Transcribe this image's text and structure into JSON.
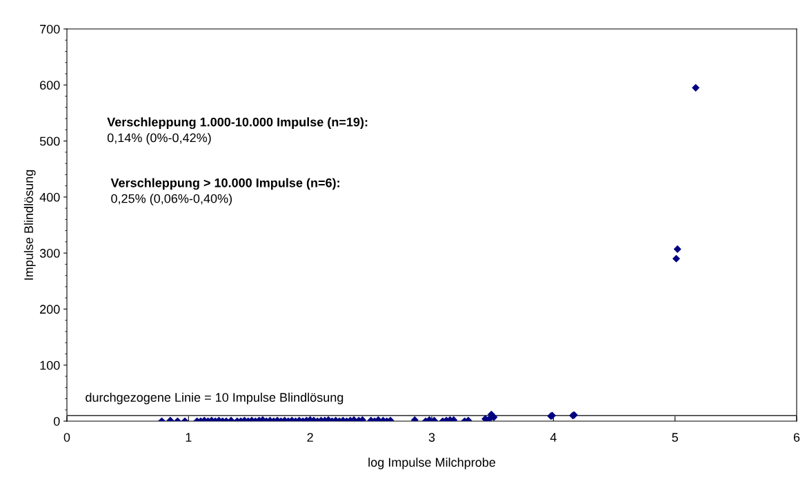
{
  "chart_data": {
    "type": "scatter",
    "xlabel": "log Impulse Milchprobe",
    "ylabel": "Impulse Blindlösung",
    "xlim": [
      0,
      6
    ],
    "xticks": [
      0,
      1,
      2,
      3,
      4,
      5,
      6
    ],
    "ylim": [
      0,
      700
    ],
    "yticks": [
      0,
      100,
      200,
      300,
      400,
      500,
      600,
      700
    ],
    "grid": false,
    "legend": false,
    "marker": "diamond",
    "series": [
      {
        "color": "#000080",
        "x": [
          0.78,
          0.85,
          0.91,
          0.97,
          1.07,
          1.1,
          1.13,
          1.16,
          1.19,
          1.22,
          1.25,
          1.28,
          1.31,
          1.35,
          1.4,
          1.43,
          1.46,
          1.49,
          1.52,
          1.55,
          1.58,
          1.61,
          1.64,
          1.67,
          1.7,
          1.73,
          1.76,
          1.79,
          1.82,
          1.85,
          1.88,
          1.91,
          1.94,
          1.97,
          2.0,
          2.03,
          2.06,
          2.09,
          2.12,
          2.15,
          2.18,
          2.21,
          2.24,
          2.27,
          2.3,
          2.33,
          2.36,
          2.4,
          2.43,
          2.5,
          2.53,
          2.56,
          2.6,
          2.63,
          2.66,
          2.86,
          2.95,
          2.98,
          3.02,
          3.09,
          3.12,
          3.15,
          3.18,
          3.27,
          3.3,
          3.44,
          3.47,
          3.49,
          3.51,
          3.98,
          3.99,
          4.16,
          4.17,
          5.01,
          5.02,
          5.17
        ],
        "values": [
          0,
          1,
          0,
          0,
          0,
          0,
          1,
          0,
          1,
          0,
          1,
          0,
          0,
          1,
          0,
          0,
          1,
          0,
          1,
          0,
          1,
          2,
          0,
          1,
          0,
          1,
          0,
          1,
          0,
          1,
          0,
          1,
          0,
          1,
          2,
          1,
          0,
          1,
          1,
          2,
          0,
          1,
          0,
          1,
          0,
          1,
          2,
          1,
          2,
          1,
          0,
          2,
          1,
          0,
          1,
          2,
          0,
          2,
          1,
          0,
          1,
          2,
          2,
          0,
          1,
          4,
          3,
          12,
          7,
          9,
          10,
          10,
          11,
          290,
          307,
          595
        ]
      }
    ],
    "ref_lines": [
      {
        "axis": "y",
        "value": 10,
        "color": "#000000",
        "line_style": "solid"
      }
    ],
    "annotations": [
      "durchgezogene Linie = 10 Impulse Blindlösung",
      "Verschleppung 1.000-10.000 Impulse (n=19):",
      "0,14% (0%-0,42%)",
      "Verschleppung > 10.000 Impulse (n=6):",
      "0,25% (0,06%-0,40%)"
    ]
  }
}
